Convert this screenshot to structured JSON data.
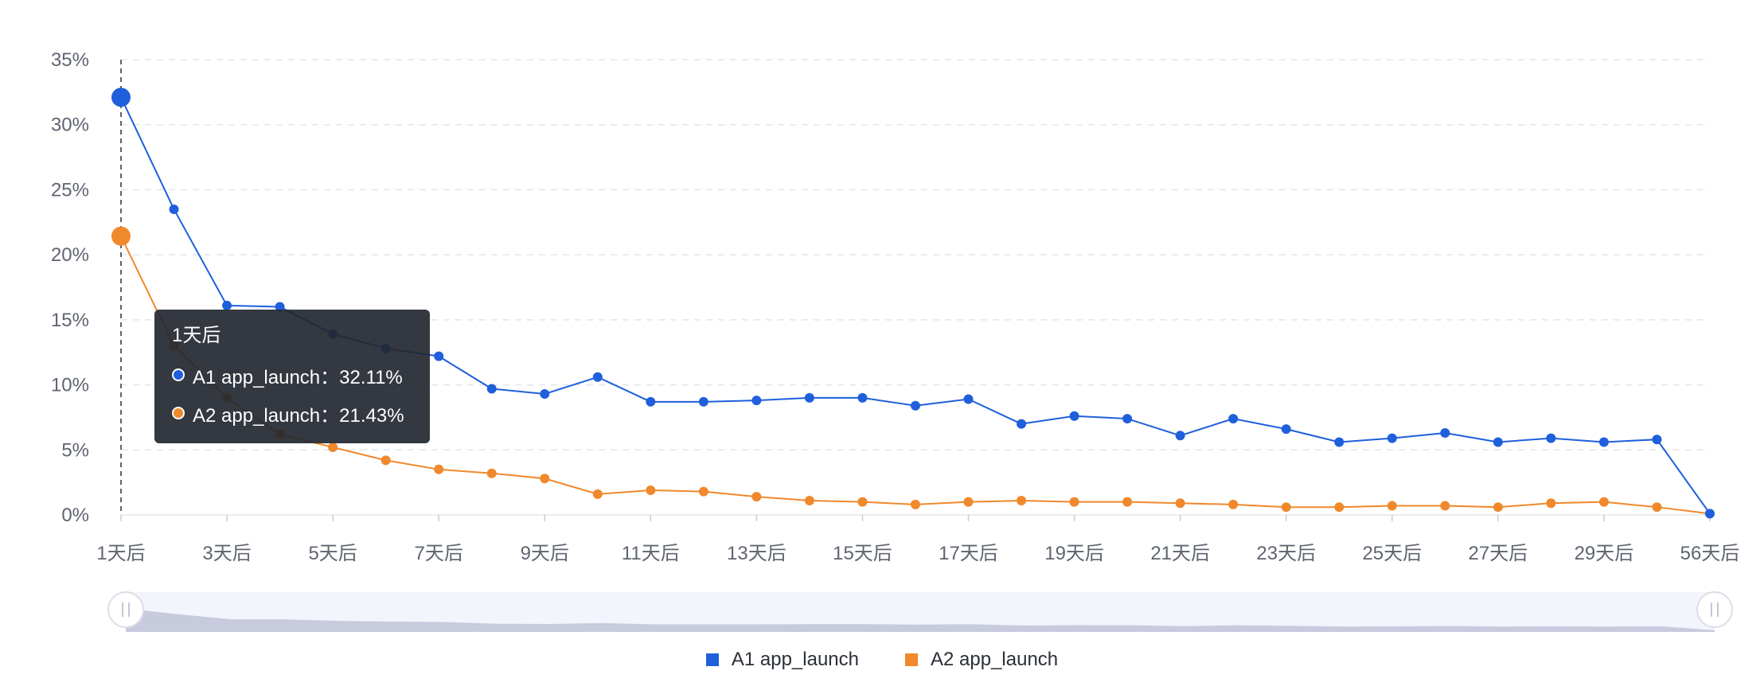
{
  "chart_data": {
    "type": "line",
    "x": [
      "1天后",
      "2天后",
      "3天后",
      "4天后",
      "5天后",
      "6天后",
      "7天后",
      "8天后",
      "9天后",
      "10天后",
      "11天后",
      "12天后",
      "13天后",
      "14天后",
      "15天后",
      "16天后",
      "17天后",
      "18天后",
      "19天后",
      "20天后",
      "21天后",
      "22天后",
      "23天后",
      "24天后",
      "25天后",
      "26天后",
      "27天后",
      "28天后",
      "29天后",
      "30天后",
      "56天后"
    ],
    "x_tick_labels": [
      "1天后",
      "3天后",
      "5天后",
      "7天后",
      "9天后",
      "11天后",
      "13天后",
      "15天后",
      "17天后",
      "19天后",
      "21天后",
      "23天后",
      "25天后",
      "27天后",
      "29天后",
      "56天后"
    ],
    "y_ticks": [
      "0%",
      "5%",
      "10%",
      "15%",
      "20%",
      "25%",
      "30%",
      "35%"
    ],
    "ylim": [
      0,
      35
    ],
    "grid": "horizontal dashed",
    "legend_position": "bottom-center",
    "series": [
      {
        "name": "A1 app_launch",
        "color": "#1f5fdc",
        "values": [
          32.11,
          23.5,
          16.1,
          16.0,
          13.9,
          12.8,
          12.2,
          9.7,
          9.3,
          10.6,
          8.7,
          8.7,
          8.8,
          9.0,
          9.0,
          8.4,
          8.9,
          7.0,
          7.6,
          7.4,
          6.1,
          7.4,
          6.6,
          5.6,
          5.9,
          6.3,
          5.6,
          5.9,
          5.6,
          5.8,
          0.1
        ]
      },
      {
        "name": "A2 app_launch",
        "color": "#f0882c",
        "values": [
          21.43,
          13.0,
          9.0,
          6.2,
          5.2,
          4.2,
          3.5,
          3.2,
          2.8,
          1.6,
          1.9,
          1.8,
          1.4,
          1.1,
          1.0,
          0.8,
          1.0,
          1.1,
          1.0,
          1.0,
          0.9,
          0.8,
          0.6,
          0.6,
          0.7,
          0.7,
          0.6,
          0.9,
          1.0,
          0.6,
          0.1
        ]
      }
    ],
    "active_index": 0,
    "tooltip": {
      "title": "1天后",
      "rows": [
        {
          "label": "A1 app_launch：32.11%",
          "color": "#1f5fdc"
        },
        {
          "label": "A2 app_launch：21.43%",
          "color": "#f0882c"
        }
      ]
    },
    "datazoom_color": "#c8cade"
  }
}
